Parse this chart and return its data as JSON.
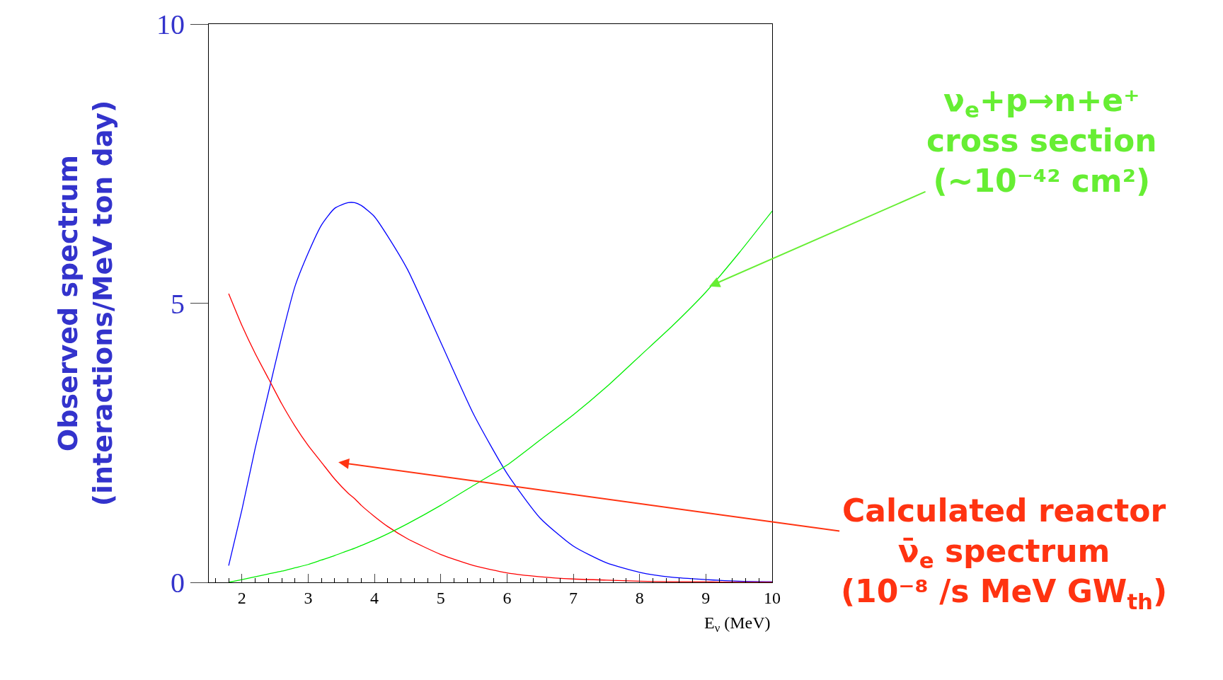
{
  "chart_data": {
    "type": "line",
    "xlabel": "E$_{ν}$ (MeV)",
    "ylabel": "Observed spectrum\n(interactions/MeV ton day)",
    "x": [
      1.8,
      2.0,
      2.2,
      2.4,
      2.6,
      2.8,
      3.0,
      3.2,
      3.4,
      3.6,
      3.7,
      3.8,
      4.0,
      4.2,
      4.5,
      5.0,
      5.5,
      6.0,
      6.5,
      7.0,
      7.5,
      8.0,
      8.5,
      9.0,
      9.5,
      10.0
    ],
    "series": [
      {
        "color": "#0000ff",
        "values": [
          0.3,
          1.3,
          2.4,
          3.4,
          4.4,
          5.3,
          5.9,
          6.4,
          6.7,
          6.8,
          6.8,
          6.75,
          6.55,
          6.2,
          5.6,
          4.3,
          3.0,
          1.95,
          1.15,
          0.65,
          0.35,
          0.18,
          0.09,
          0.05,
          0.02,
          0.01
        ]
      },
      {
        "color": "#ff0000",
        "values": [
          5.17,
          4.6,
          4.1,
          3.65,
          3.2,
          2.8,
          2.45,
          2.15,
          1.85,
          1.6,
          1.5,
          1.38,
          1.18,
          1.0,
          0.78,
          0.5,
          0.3,
          0.17,
          0.1,
          0.06,
          0.04,
          0.02,
          0.01,
          0.01,
          0.0,
          0.0
        ]
      },
      {
        "color": "#00ee00",
        "values": [
          0.0,
          0.05,
          0.1,
          0.15,
          0.2,
          0.26,
          0.32,
          0.4,
          0.48,
          0.57,
          0.61,
          0.66,
          0.76,
          0.87,
          1.05,
          1.38,
          1.74,
          2.1,
          2.55,
          3.0,
          3.5,
          4.05,
          4.6,
          5.2,
          5.9,
          6.65
        ]
      }
    ],
    "xlim": [
      1.5,
      10
    ],
    "xticks": [
      2,
      3,
      4,
      5,
      6,
      7,
      8,
      9,
      10
    ],
    "ylim": [
      0,
      10
    ],
    "yticks": [
      0,
      5,
      10
    ],
    "annotations": [
      {
        "text": "ν$_{e}$+p→n+e⁺\ncross section\n(~10⁻⁴² cm²)",
        "x": 9.05,
        "y": 5.3
      },
      "Calculated reactor\nν̄$_{e}$ spectrum\n(10⁻⁸ /s MeV GW$_{th}$)"
    ]
  }
}
